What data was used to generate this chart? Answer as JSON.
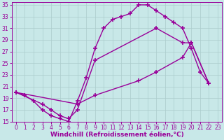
{
  "xlabel": "Windchill (Refroidissement éolien,°C)",
  "bg_color": "#c8e8e8",
  "grid_color": "#aacccc",
  "line_color": "#990099",
  "xlim": [
    -0.5,
    23.5
  ],
  "ylim": [
    15,
    35.5
  ],
  "xticks": [
    0,
    1,
    2,
    3,
    4,
    5,
    6,
    7,
    8,
    9,
    10,
    11,
    12,
    13,
    14,
    15,
    16,
    17,
    18,
    19,
    20,
    21,
    22,
    23
  ],
  "yticks": [
    15,
    17,
    19,
    21,
    23,
    25,
    27,
    29,
    31,
    33,
    35
  ],
  "curve1": {
    "x": [
      0,
      1,
      2,
      3,
      4,
      5,
      6,
      7,
      8,
      9,
      10,
      11,
      12,
      13,
      14,
      15,
      16,
      17,
      18,
      19,
      20,
      21,
      22
    ],
    "y": [
      20,
      19.5,
      18.5,
      17.0,
      16.0,
      15.5,
      15.0,
      18.5,
      22.5,
      27.5,
      31.0,
      32.5,
      33.0,
      33.5,
      35.0,
      35.0,
      34.0,
      33.0,
      32.0,
      31.0,
      27.5,
      23.5,
      21.5
    ]
  },
  "curve2": {
    "x": [
      0,
      3,
      4,
      5,
      6,
      7,
      9,
      16,
      19,
      20,
      22
    ],
    "y": [
      20,
      18.0,
      17.0,
      16.0,
      15.5,
      17.0,
      25.5,
      31.0,
      28.5,
      28.5,
      21.5
    ]
  },
  "curve3": {
    "x": [
      0,
      7,
      9,
      14,
      16,
      19,
      20,
      22
    ],
    "y": [
      20,
      18.0,
      19.5,
      22.0,
      23.5,
      26.0,
      28.5,
      21.5
    ]
  },
  "marker": "+",
  "markersize": 4,
  "markeredgewidth": 1.2,
  "linewidth": 1.0,
  "tick_fontsize": 5.5,
  "xlabel_fontsize": 6.5
}
